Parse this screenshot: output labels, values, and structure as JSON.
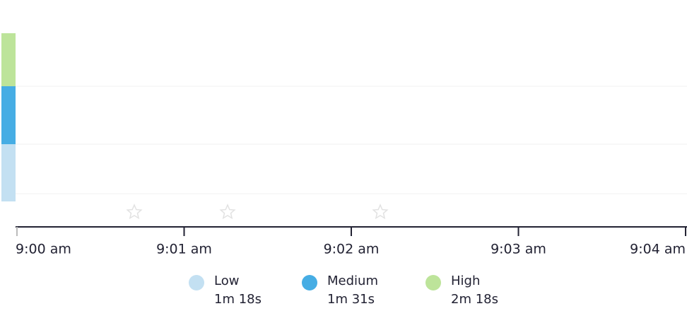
{
  "chart_data": {
    "type": "zone-timeline",
    "x_labels": [
      "9:00 am",
      "9:01 am",
      "9:02 am",
      "9:03 am",
      "9:04 am"
    ],
    "series": [
      {
        "name": "Low",
        "color": "#c3e0f2",
        "duration": "1m 18s"
      },
      {
        "name": "Medium",
        "color": "#46ade4",
        "duration": "1m 31s"
      },
      {
        "name": "High",
        "color": "#bde49a",
        "duration": "2m 18s"
      }
    ]
  }
}
